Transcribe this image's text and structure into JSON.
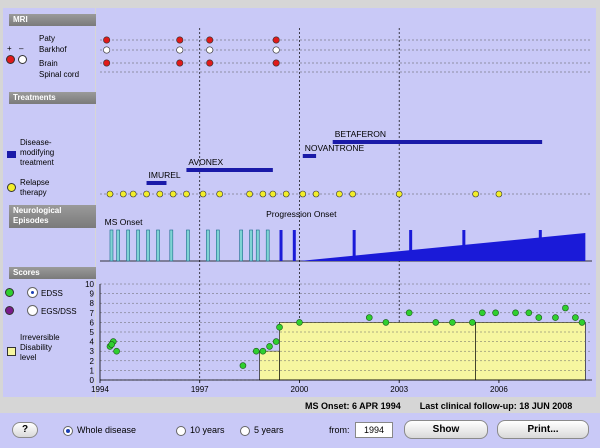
{
  "sidebar": {
    "mri_header": "MRI",
    "mri_plus": "+",
    "mri_minus": "–",
    "mri_paty": "Paty",
    "mri_barkhof": "Barkhof",
    "mri_brain": "Brain",
    "mri_spinal": "Spinal cord",
    "treatments_header": "Treatments",
    "dmt_label_1": "Disease-",
    "dmt_label_2": "modifying",
    "dmt_label_3": "treatment",
    "relapse_label_1": "Relapse",
    "relapse_label_2": "therapy",
    "neuro_header_1": "Neurological",
    "neuro_header_2": "Episodes",
    "scores_header": "Scores",
    "edss_label": "EDSS",
    "egs_label": "EGS/DSS",
    "irrev_label_1": "Irreversible",
    "irrev_label_2": "Disability",
    "irrev_label_3": "level"
  },
  "colors": {
    "background": "#c9c9f7",
    "dmt_bar": "#1a1aa8",
    "relapse_dot": "#f2ee2a",
    "episode_bar": "#1a1ad8",
    "episode_light": "#7fd4d4",
    "edss_dot": "#2fcf2f",
    "egs_dot": "#7a1a8a",
    "mri_red": "#e01a1a",
    "irreversible_fill": "#f6f6a0"
  },
  "chart_data": {
    "type": "timeline",
    "x_range": [
      1994,
      2008.8
    ],
    "x_ticks": [
      "1994",
      "1997",
      "2000",
      "2003",
      "2006"
    ],
    "y_ticks": [
      "0",
      "1",
      "2",
      "3",
      "4",
      "5",
      "6",
      "7",
      "8",
      "9",
      "10"
    ],
    "mri": {
      "rows": [
        "Paty",
        "Barkhof",
        "Brain",
        "Spinal cord"
      ],
      "visits": [
        {
          "x": 1994.2,
          "paty": "+",
          "barkhof": "–",
          "brain": "+"
        },
        {
          "x": 1996.4,
          "paty": "+",
          "barkhof": "–",
          "brain": "+"
        },
        {
          "x": 1997.3,
          "paty": "+",
          "barkhof": "–",
          "brain": "+"
        },
        {
          "x": 1999.3,
          "paty": "+",
          "barkhof": "–",
          "brain": "+"
        }
      ]
    },
    "treatments": [
      {
        "name": "IMUREL",
        "start": 1995.4,
        "end": 1996.0
      },
      {
        "name": "AVONEX",
        "start": 1996.6,
        "end": 1999.2
      },
      {
        "name": "NOVANTRONE",
        "start": 2000.1,
        "end": 2000.5
      },
      {
        "name": "BETAFERON",
        "start": 2001.0,
        "end": 2007.3
      }
    ],
    "relapse_therapy_x": [
      1994.3,
      1994.7,
      1995.0,
      1995.4,
      1995.8,
      1996.2,
      1996.6,
      1997.1,
      1997.6,
      1998.5,
      1998.9,
      1999.2,
      1999.6,
      2000.1,
      2000.5,
      2001.2,
      2001.6,
      2003.0,
      2005.3,
      2006.0
    ],
    "annotations": [
      {
        "text": "MS Onset",
        "x": 1994.2
      },
      {
        "text": "Progression Onset",
        "x": 1999.9
      }
    ],
    "episodes": {
      "relapses_light": [
        1994.3,
        1994.5,
        1994.8,
        1995.1,
        1995.4,
        1995.7,
        1996.1,
        1996.6,
        1997.2,
        1997.5,
        1998.2,
        1998.5,
        1998.7,
        1999.0
      ],
      "relapses_dark": [
        1999.4,
        1999.8,
        2001.6,
        2003.3,
        2004.9,
        2007.2
      ],
      "progression_start": 2000.0,
      "progression_end": 2008.6,
      "progression_peak": 1.0
    },
    "edss": [
      {
        "x": 1994.3,
        "y": 3.5
      },
      {
        "x": 1994.4,
        "y": 4.0
      },
      {
        "x": 1994.5,
        "y": 3.0
      },
      {
        "x": 1994.35,
        "y": 3.7
      },
      {
        "x": 1998.3,
        "y": 1.5
      },
      {
        "x": 1998.7,
        "y": 3.0
      },
      {
        "x": 1998.9,
        "y": 3.0
      },
      {
        "x": 1999.1,
        "y": 3.5
      },
      {
        "x": 1999.3,
        "y": 4.0
      },
      {
        "x": 1999.4,
        "y": 5.5
      },
      {
        "x": 2000.0,
        "y": 6.0
      },
      {
        "x": 2002.1,
        "y": 6.5
      },
      {
        "x": 2002.6,
        "y": 6.0
      },
      {
        "x": 2003.3,
        "y": 7.0
      },
      {
        "x": 2004.1,
        "y": 6.0
      },
      {
        "x": 2004.6,
        "y": 6.0
      },
      {
        "x": 2005.2,
        "y": 6.0
      },
      {
        "x": 2005.5,
        "y": 7.0
      },
      {
        "x": 2005.9,
        "y": 7.0
      },
      {
        "x": 2006.5,
        "y": 7.0
      },
      {
        "x": 2006.9,
        "y": 7.0
      },
      {
        "x": 2007.2,
        "y": 6.5
      },
      {
        "x": 2007.7,
        "y": 6.5
      },
      {
        "x": 2008.0,
        "y": 7.5
      },
      {
        "x": 2008.3,
        "y": 6.5
      },
      {
        "x": 2008.5,
        "y": 6.0
      }
    ],
    "irreversible_levels": [
      {
        "start": 1998.8,
        "end": 1999.4,
        "y": 3.0
      },
      {
        "start": 1999.4,
        "end": 2005.3,
        "y": 6.0
      },
      {
        "start": 2005.3,
        "end": 2008.6,
        "y": 6.0
      }
    ]
  },
  "footer": {
    "ms_onset": "MS Onset: 6 APR 1994",
    "last_followup": "Last clinical follow-up: 18 JUN 2008"
  },
  "toolbar": {
    "help_label": "?",
    "whole_label": "Whole disease",
    "ten_label": "10 years",
    "five_label": "5 years",
    "from_label": "from:",
    "from_value": "1994",
    "show_label": "Show",
    "print_label": "Print..."
  }
}
